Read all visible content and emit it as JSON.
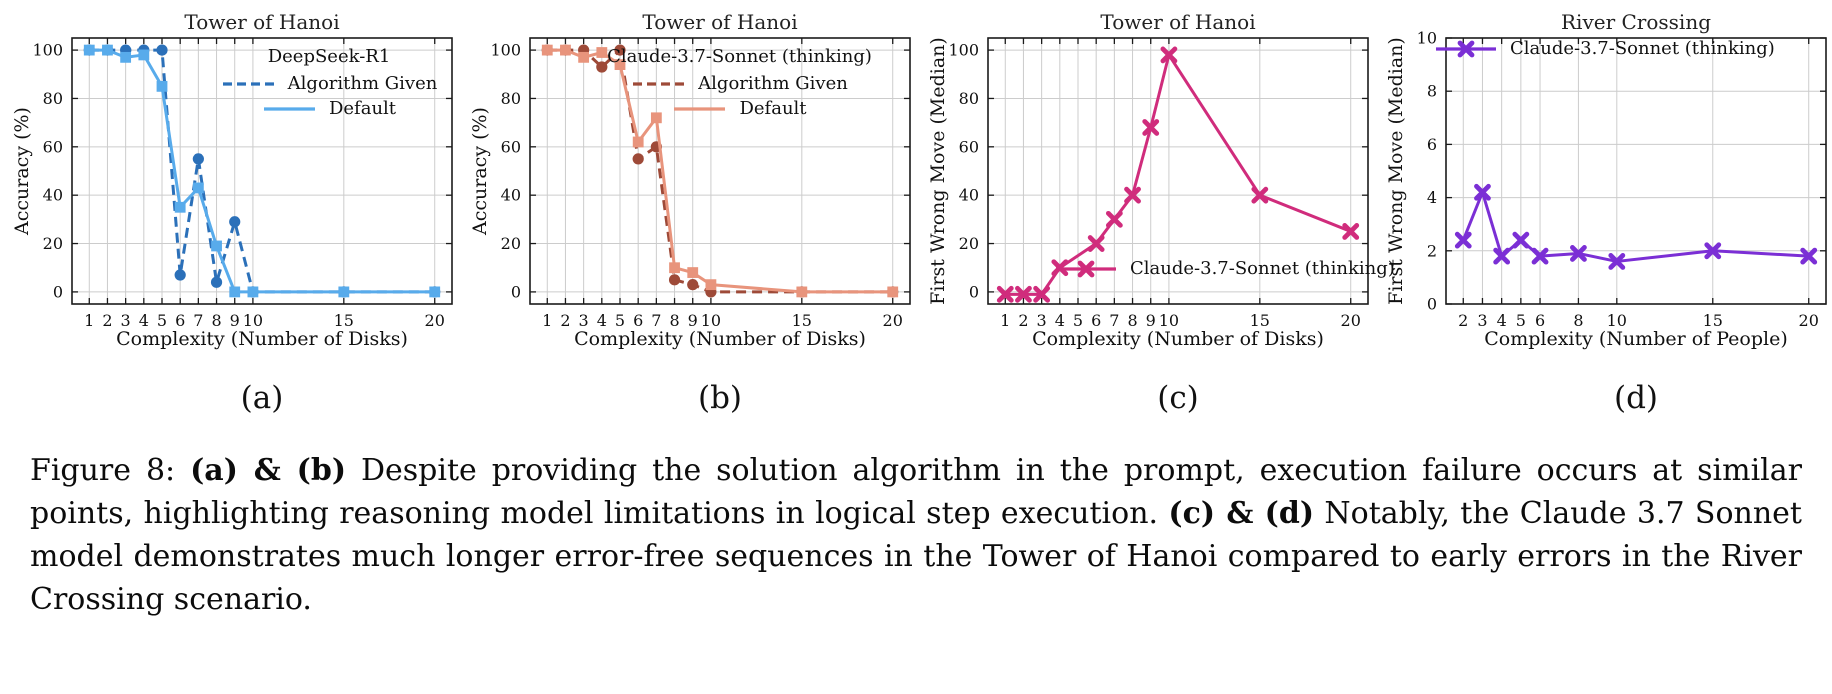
{
  "panel_labels": [
    "(a)",
    "(b)",
    "(c)",
    "(d)"
  ],
  "caption": {
    "segments": [
      {
        "text": "Figure 8: ",
        "bold": false
      },
      {
        "text": "(a) & (b)",
        "bold": true
      },
      {
        "text": " Despite providing the solution algorithm in the prompt, execution failure occurs at similar points, highlighting reasoning model limitations in logical step execution. ",
        "bold": false
      },
      {
        "text": "(c) & (d)",
        "bold": true
      },
      {
        "text": " Notably, the Claude 3.7 Sonnet model demonstrates much longer error-free sequences in the Tower of Hanoi compared to early errors in the River Crossing scenario.",
        "bold": false
      }
    ]
  },
  "chart_data": [
    {
      "type": "line",
      "title": "Tower of Hanoi",
      "xlabel": "Complexity (Number of Disks)",
      "ylabel": "Accuracy (%)",
      "legend_title": "DeepSeek-R1",
      "legend_position": "upper right",
      "grid": true,
      "xlim": [
        0.05,
        20.95
      ],
      "ylim": [
        -5,
        105
      ],
      "xticks": [
        1,
        2,
        3,
        4,
        5,
        6,
        7,
        8,
        9,
        10,
        15,
        20
      ],
      "yticks": [
        0,
        20,
        40,
        60,
        80,
        100
      ],
      "series": [
        {
          "name": "Algorithm Given",
          "style": "dashed",
          "marker": "circle",
          "color": "#2b70b9",
          "x": [
            1,
            2,
            3,
            4,
            5,
            6,
            7,
            8,
            9,
            10,
            15,
            20
          ],
          "y": [
            100,
            100,
            100,
            100,
            100,
            7,
            55,
            4,
            29,
            0,
            0,
            0
          ]
        },
        {
          "name": "Default",
          "style": "solid",
          "marker": "square",
          "color": "#58abeb",
          "x": [
            1,
            2,
            3,
            4,
            5,
            6,
            7,
            8,
            9,
            10,
            15,
            20
          ],
          "y": [
            100,
            100,
            97,
            98,
            85,
            35,
            43,
            19,
            0,
            0,
            0,
            0
          ]
        }
      ]
    },
    {
      "type": "line",
      "title": "Tower of Hanoi",
      "xlabel": "Complexity (Number of Disks)",
      "ylabel": "Accuracy (%)",
      "legend_title": "Claude-3.7-Sonnet (thinking)",
      "legend_position": "upper right",
      "grid": true,
      "xlim": [
        0.05,
        20.95
      ],
      "ylim": [
        -5,
        105
      ],
      "xticks": [
        1,
        2,
        3,
        4,
        5,
        6,
        7,
        8,
        9,
        10,
        15,
        20
      ],
      "yticks": [
        0,
        20,
        40,
        60,
        80,
        100
      ],
      "series": [
        {
          "name": "Algorithm Given",
          "style": "dashed",
          "marker": "circle",
          "color": "#9e4a38",
          "x": [
            1,
            2,
            3,
            4,
            5,
            6,
            7,
            8,
            9,
            10,
            15,
            20
          ],
          "y": [
            100,
            100,
            100,
            93,
            100,
            55,
            60,
            5,
            3,
            0,
            0,
            0
          ]
        },
        {
          "name": "Default",
          "style": "solid",
          "marker": "square",
          "color": "#e8947c",
          "x": [
            1,
            2,
            3,
            4,
            5,
            6,
            7,
            8,
            9,
            10,
            15,
            20
          ],
          "y": [
            100,
            100,
            97,
            99,
            94,
            62,
            72,
            10,
            8,
            3,
            0,
            0
          ]
        }
      ]
    },
    {
      "type": "line",
      "title": "Tower of Hanoi",
      "xlabel": "Complexity (Number of Disks)",
      "ylabel": "First Wrong Move (Median)",
      "legend_title": "",
      "legend_position": "lower right",
      "grid": true,
      "xlim": [
        0.05,
        20.95
      ],
      "ylim": [
        -5,
        105
      ],
      "xticks": [
        1,
        2,
        3,
        4,
        5,
        6,
        7,
        8,
        9,
        10,
        15,
        20
      ],
      "yticks": [
        0,
        20,
        40,
        60,
        80,
        100
      ],
      "series": [
        {
          "name": "Claude-3.7-Sonnet (thinking)",
          "style": "solid",
          "marker": "X",
          "color": "#d02c7c",
          "x": [
            1,
            2,
            3,
            4,
            6,
            7,
            8,
            9,
            10,
            15,
            20
          ],
          "y": [
            -1,
            -1,
            -1,
            10,
            20,
            30,
            40,
            68,
            98,
            40,
            25
          ]
        }
      ]
    },
    {
      "type": "line",
      "title": "River Crossing",
      "xlabel": "Complexity (Number of People)",
      "ylabel": "First Wrong Move (Median)",
      "legend_title": "",
      "legend_position": "upper center",
      "grid": true,
      "xlim": [
        1.1,
        20.9
      ],
      "ylim": [
        0,
        10
      ],
      "xticks": [
        2,
        3,
        4,
        5,
        6,
        8,
        10,
        15,
        20
      ],
      "yticks": [
        0,
        2,
        4,
        6,
        8,
        10
      ],
      "series": [
        {
          "name": "Claude-3.7-Sonnet (thinking)",
          "style": "solid",
          "marker": "X",
          "color": "#7b2fd5",
          "x": [
            2,
            3,
            4,
            5,
            6,
            8,
            10,
            15,
            20
          ],
          "y": [
            2.4,
            4.2,
            1.8,
            2.4,
            1.8,
            1.9,
            1.6,
            2.0,
            1.8
          ]
        }
      ]
    }
  ]
}
